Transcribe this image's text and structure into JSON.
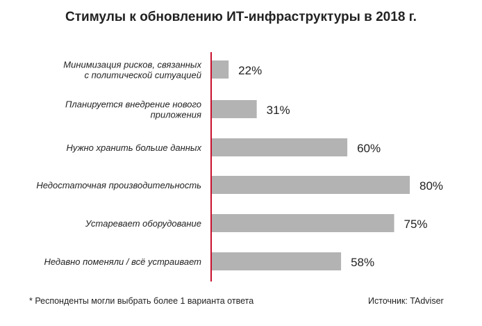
{
  "chart_data": {
    "type": "bar",
    "orientation": "horizontal",
    "title": "Стимулы к обновлению ИТ-инфраструктуры в 2018 г.",
    "categories": [
      [
        "Минимизация рисков, связанных",
        "с политической ситуацией"
      ],
      [
        "Планируется внедрение нового",
        "приложения"
      ],
      [
        "Нужно хранить больше данных"
      ],
      [
        "Недостаточная производительность"
      ],
      [
        "Устаревает оборудование"
      ],
      [
        "Недавно поменяли / всё устраивает"
      ]
    ],
    "values": [
      22,
      31,
      60,
      80,
      75,
      58
    ],
    "value_labels": [
      "22%",
      "31%",
      "60%",
      "80%",
      "75%",
      "58%"
    ],
    "xlabel": "",
    "ylabel": "",
    "grid": false,
    "colors": {
      "bar": "#b3b3b3",
      "axis": "#c8102e",
      "text": "#222222"
    }
  },
  "footnote": "* Респонденты могли выбрать более 1 варианта ответа",
  "source": "Источник: TAdviser"
}
